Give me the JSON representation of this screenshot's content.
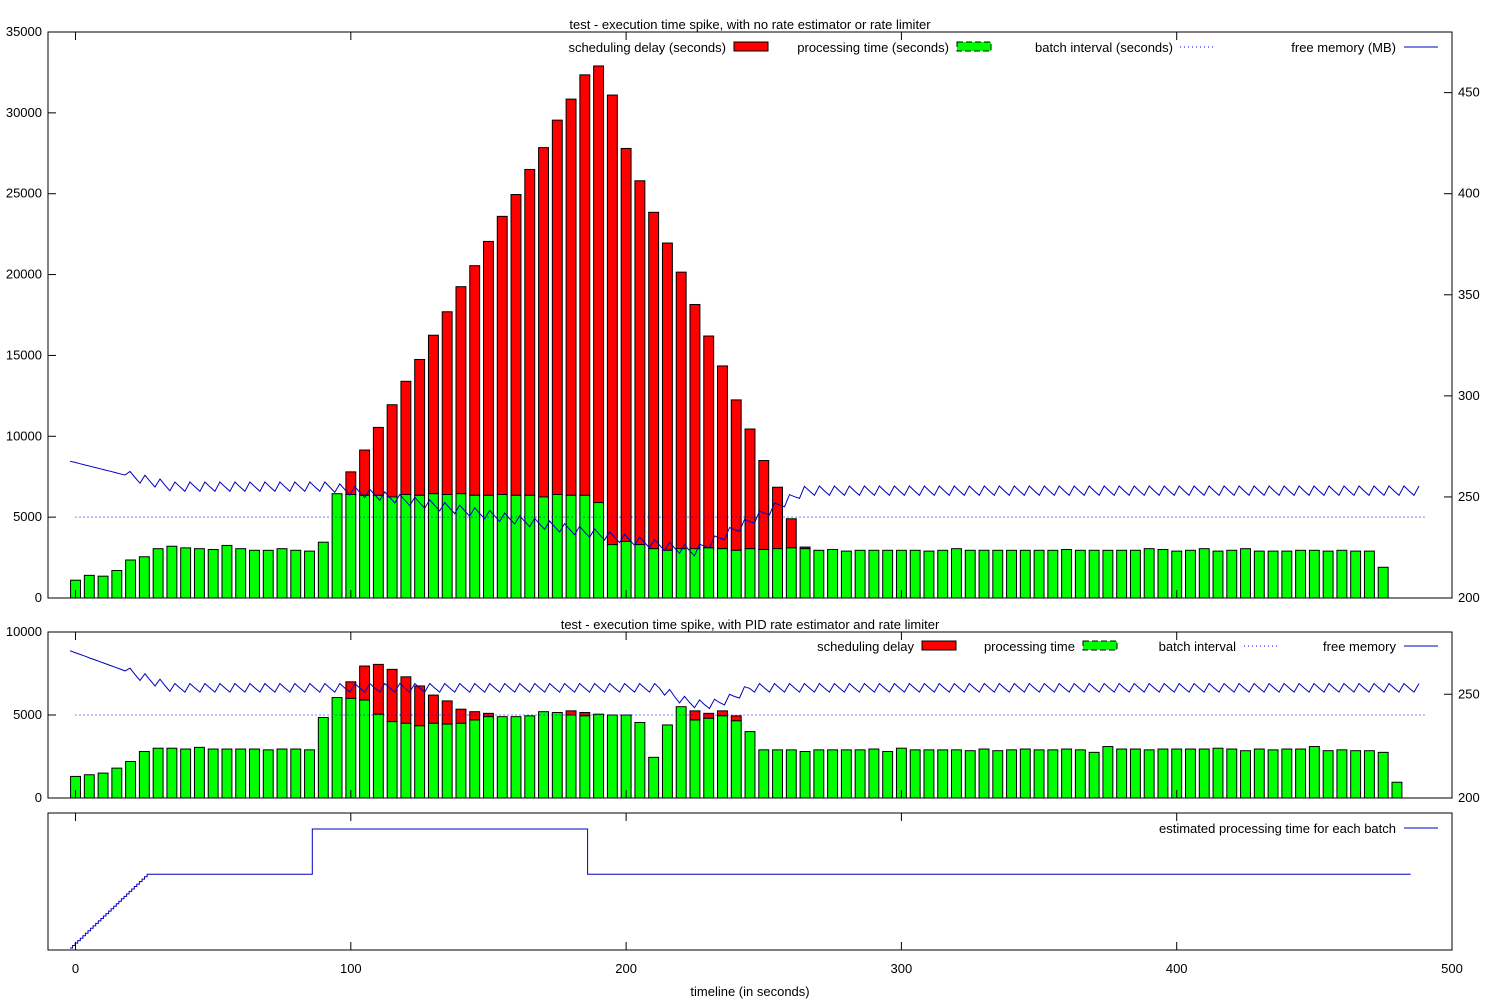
{
  "colors": {
    "scheduling_delay": "#ff0000",
    "processing_time": "#00ff00",
    "batch_interval": "#0000ff",
    "free_memory": "#0000c0",
    "estimate": "#0000c0"
  },
  "x_axis": {
    "label": "timeline (in seconds)",
    "range": [
      -10,
      500
    ],
    "ticks": [
      0,
      100,
      200,
      300,
      400,
      500
    ]
  },
  "chart_data": [
    {
      "type": "bar",
      "title": "test - execution time spike, with no rate estimator or rate limiter",
      "stacked": true,
      "x_start": 0,
      "x_step": 5,
      "y_range": [
        0,
        35000
      ],
      "y_ticks": [
        0,
        5000,
        10000,
        15000,
        20000,
        25000,
        30000,
        35000
      ],
      "y2_range": [
        200,
        480
      ],
      "y2_ticks": [
        200,
        250,
        300,
        350,
        400,
        450
      ],
      "legend": {
        "position": "top",
        "scheduling_delay": "scheduling delay (seconds)",
        "processing_time": "processing time (seconds)",
        "batch_interval": "batch interval (seconds)",
        "free_memory": "free memory (MB)"
      },
      "batch_interval": 5000,
      "processing_time": [
        1100,
        1400,
        1350,
        1700,
        2350,
        2550,
        3050,
        3200,
        3100,
        3050,
        3000,
        3250,
        3050,
        2950,
        2950,
        3050,
        2950,
        2900,
        3450,
        6450,
        6400,
        6350,
        6350,
        6250,
        6400,
        6350,
        6450,
        6400,
        6450,
        6350,
        6350,
        6400,
        6350,
        6350,
        6250,
        6400,
        6350,
        6350,
        5900,
        3300,
        3500,
        3300,
        3050,
        2950,
        3050,
        3050,
        3100,
        3050,
        2950,
        3050,
        3000,
        3050,
        3100,
        3050,
        2950,
        3000,
        2900,
        2950,
        2950,
        2950,
        2950,
        2950,
        2900,
        2950,
        3050,
        2950,
        2950,
        2950,
        2950,
        2950,
        2950,
        2950,
        3000,
        2950,
        2950,
        2950,
        2950,
        2950,
        3050,
        3000,
        2900,
        2950,
        3050,
        2900,
        2950,
        3050,
        2900,
        2900,
        2900,
        2950,
        2950,
        2900,
        2950,
        2900,
        2900,
        1900
      ],
      "scheduling_delay": [
        0,
        0,
        0,
        0,
        0,
        0,
        0,
        0,
        0,
        0,
        0,
        0,
        0,
        0,
        0,
        0,
        0,
        0,
        0,
        0,
        1400,
        2800,
        4200,
        5700,
        7000,
        8400,
        9800,
        11300,
        12800,
        14200,
        15700,
        17200,
        18600,
        20150,
        21600,
        23150,
        24500,
        26000,
        27000,
        27800,
        24300,
        22500,
        20800,
        19000,
        17100,
        15100,
        13100,
        11300,
        9300,
        7400,
        5500,
        3800,
        1800,
        100,
        0,
        0,
        0,
        0,
        0,
        0,
        0,
        0,
        0,
        0,
        0,
        0,
        0,
        0,
        0,
        0,
        0,
        0,
        0,
        0,
        0,
        0,
        0,
        0,
        0,
        0,
        0,
        0,
        0,
        0,
        0,
        0,
        0,
        0,
        0,
        0,
        0,
        0,
        0,
        0,
        0,
        0
      ],
      "free_memory_start": 267,
      "free_memory_min": 223,
      "free_memory_end": 253
    },
    {
      "type": "bar",
      "title": "test - execution time spike, with PID rate estimator and rate limiter",
      "stacked": true,
      "x_start": 0,
      "x_step": 5,
      "y_range": [
        0,
        10000
      ],
      "y_ticks": [
        0,
        5000,
        10000
      ],
      "y2_range": [
        200,
        280
      ],
      "y2_ticks": [
        200,
        250
      ],
      "legend": {
        "position": "top",
        "scheduling_delay": "scheduling delay",
        "processing_time": "processing time",
        "batch_interval": "batch interval",
        "free_memory": "free memory"
      },
      "batch_interval": 5000,
      "processing_time": [
        1300,
        1400,
        1500,
        1800,
        2200,
        2800,
        3000,
        3000,
        2950,
        3050,
        2950,
        2950,
        2950,
        2950,
        2900,
        2950,
        2950,
        2900,
        4850,
        6050,
        6000,
        5900,
        5050,
        4600,
        4500,
        4350,
        4500,
        4450,
        4500,
        4700,
        4900,
        4900,
        4900,
        4950,
        5200,
        5150,
        5000,
        4950,
        5050,
        5000,
        5000,
        4550,
        2450,
        4400,
        5500,
        4700,
        4800,
        4950,
        4650,
        4000,
        2900,
        2900,
        2900,
        2800,
        2900,
        2900,
        2900,
        2900,
        2950,
        2800,
        3000,
        2900,
        2900,
        2900,
        2900,
        2850,
        2950,
        2850,
        2900,
        2950,
        2900,
        2900,
        2950,
        2900,
        2750,
        3100,
        2950,
        2950,
        2900,
        2950,
        2950,
        2950,
        2950,
        3000,
        2950,
        2850,
        2950,
        2900,
        2950,
        2950,
        3100,
        2850,
        2900,
        2850,
        2850,
        2750,
        950
      ],
      "scheduling_delay": [
        0,
        0,
        0,
        0,
        0,
        0,
        0,
        0,
        0,
        0,
        0,
        0,
        0,
        0,
        0,
        0,
        0,
        0,
        0,
        0,
        1000,
        2050,
        3000,
        3150,
        2800,
        2400,
        1700,
        1400,
        850,
        500,
        200,
        0,
        0,
        0,
        0,
        0,
        250,
        200,
        0,
        0,
        0,
        0,
        0,
        0,
        0,
        550,
        300,
        300,
        300,
        0,
        0,
        0,
        0,
        0,
        0,
        0,
        0,
        0,
        0,
        0,
        0,
        0,
        0,
        0,
        0,
        0,
        0,
        0,
        0,
        0,
        0,
        0,
        0,
        0,
        0,
        0,
        0,
        0,
        0,
        0,
        0,
        0,
        0,
        0,
        0,
        0,
        0,
        0,
        0,
        0,
        0,
        0,
        0,
        0,
        0,
        0,
        0
      ],
      "free_memory_start": 270,
      "free_memory_end": 253
    },
    {
      "type": "line",
      "title": "",
      "y_ticks": [],
      "legend": {
        "position": "top-right",
        "estimate": "estimated processing time for each batch"
      },
      "steps": [
        {
          "x": -2,
          "level": 0.0
        },
        {
          "x": 26,
          "level": 0.62
        },
        {
          "x": 86,
          "level": 1.0
        },
        {
          "x": 186,
          "level": 0.62
        },
        {
          "x": 485,
          "level": 0.62
        }
      ]
    }
  ]
}
